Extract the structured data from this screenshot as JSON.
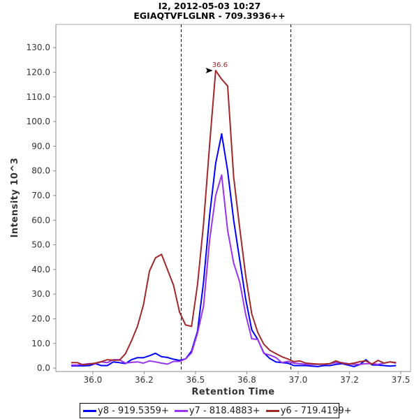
{
  "chart_data": {
    "type": "line",
    "title": "I2, 2012-05-03 10:27",
    "subtitle": "EGIAQTVFLGLNR - 709.3936++",
    "xlabel": "Retention Time",
    "ylabel": "Intensity 10^3",
    "xlim": [
      35.82,
      37.548
    ],
    "ylim": [
      -1.4,
      139.4
    ],
    "x_ticks": [
      36.0,
      36.25,
      36.5,
      36.75,
      37.0,
      37.25,
      37.5
    ],
    "x_tick_labels": [
      "36.0",
      "36.2",
      "36.5",
      "36.8",
      "37.0",
      "37.2",
      "37.5"
    ],
    "y_ticks": [
      0,
      10,
      20,
      30,
      40,
      50,
      60,
      70,
      80,
      90,
      100,
      110,
      120,
      130
    ],
    "y_tick_labels": [
      "0.0",
      "10.0",
      "20.0",
      "30.0",
      "40.0",
      "50.0",
      "60.0",
      "70.0",
      "80.0",
      "90.0",
      "100.0",
      "110.0",
      "120.0",
      "130.0"
    ],
    "grid": false,
    "legend_position": "bottom",
    "x_start": 35.895,
    "x_step": 0.0293,
    "boundary_lines": [
      36.429,
      36.963
    ],
    "annotation": {
      "text": "36.6",
      "x": 36.598,
      "y": 120.7,
      "color": "#a02828"
    },
    "series": [
      {
        "name": "y8 - 919.5359+",
        "color": "#0000ff",
        "values": [
          0.9,
          0.9,
          0.9,
          1.0,
          1.8,
          1.0,
          1.0,
          2.5,
          2.2,
          1.8,
          3.4,
          4.2,
          4.2,
          5.0,
          6.0,
          4.6,
          4.3,
          3.6,
          3.1,
          3.7,
          6.9,
          15,
          35,
          62,
          83,
          95,
          80,
          60,
          44,
          28,
          15.5,
          11.6,
          6.2,
          3.9,
          2.5,
          2.2,
          2.0,
          1.0,
          1.0,
          1.0,
          0.8,
          0.6,
          1.0,
          1.0,
          1.5,
          1.8,
          1.2,
          0.6,
          1.5,
          3.4,
          1.3,
          1.2,
          1.0,
          0.8,
          1.0
        ]
      },
      {
        "name": "y7 - 818.4883+",
        "color": "#9933ee",
        "values": [
          1.2,
          1.2,
          1.5,
          1.8,
          1.8,
          2.5,
          2.2,
          3.4,
          3.4,
          2.0,
          2.3,
          2.5,
          2.0,
          2.9,
          2.5,
          2.0,
          1.6,
          2.7,
          2.7,
          3.7,
          6.2,
          14.2,
          25.2,
          52,
          70,
          78.3,
          55.8,
          42.6,
          35,
          21.8,
          11.9,
          11.6,
          6.0,
          5.3,
          4.3,
          2.2,
          2.7,
          2.0,
          1.8,
          1.5,
          1.5,
          1.5,
          1.5,
          1.8,
          2.2,
          2.2,
          1.8,
          1.5,
          1.5,
          1.8,
          1.8,
          1.5,
          2.0,
          2.5,
          2.0
        ]
      },
      {
        "name": "y6 - 719.4199+",
        "color": "#a02828",
        "values": [
          2.2,
          2.2,
          1.3,
          1.6,
          2.0,
          2.6,
          3.4,
          3.2,
          3.2,
          5.8,
          11.0,
          16.9,
          25.6,
          39.3,
          44.7,
          46.1,
          39.9,
          33.6,
          22.7,
          17.5,
          16.9,
          34,
          58.6,
          90.7,
          120.7,
          117.2,
          114.4,
          77.5,
          57,
          37.5,
          22,
          14.5,
          9.7,
          7.2,
          5.9,
          4.6,
          3.7,
          2.6,
          2.9,
          2.0,
          1.8,
          1.6,
          1.6,
          1.8,
          2.9,
          2.0,
          1.6,
          2.0,
          2.6,
          2.9,
          1.6,
          3.1,
          2.0,
          2.5,
          2.2
        ]
      }
    ]
  }
}
